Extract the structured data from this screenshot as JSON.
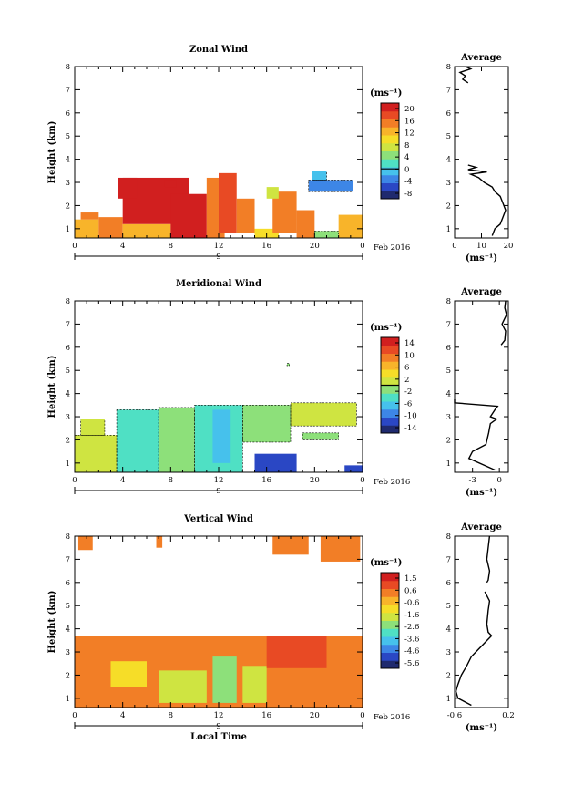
{
  "chart_data": [
    {
      "type": "heatmap",
      "title": "Zonal Wind",
      "ylabel": "Height (km)",
      "xlim": [
        0,
        24
      ],
      "ylim": [
        0.6,
        8
      ],
      "x_ticks": [
        "0",
        "4",
        "8",
        "12",
        "16",
        "20",
        "0"
      ],
      "y_ticks": [
        "1",
        "2",
        "3",
        "4",
        "5",
        "6",
        "7",
        "8"
      ],
      "day_label": "9",
      "date_label": "Feb 2016",
      "colorbar": {
        "unit": "(ms⁻¹)",
        "ticks": [
          "20",
          "16",
          "12",
          "8",
          "4",
          "0",
          "-4",
          "-8"
        ],
        "min": -10,
        "max": 22,
        "colors": [
          "#1f2a6e",
          "#2a47c4",
          "#3d86e6",
          "#46c1ec",
          "#4fe0c4",
          "#8de07a",
          "#cfe441",
          "#f6dd28",
          "#f8b42a",
          "#f27e26",
          "#e84a24",
          "#d11f1f"
        ],
        "contour": 0
      },
      "cells": [
        {
          "x0": 0,
          "x1": 2,
          "y0": 0.6,
          "y1": 1.4,
          "v": 12
        },
        {
          "x0": 2,
          "x1": 4,
          "y0": 0.6,
          "y1": 1.5,
          "v": 15
        },
        {
          "x0": 4,
          "x1": 8,
          "y0": 0.6,
          "y1": 1.2,
          "v": 12
        },
        {
          "x0": 0.5,
          "x1": 2,
          "y0": 1.4,
          "y1": 1.7,
          "v": 16
        },
        {
          "x0": 4,
          "x1": 9.5,
          "y0": 1.2,
          "y1": 3.2,
          "v": 20
        },
        {
          "x0": 8,
          "x1": 11,
          "y0": 0.6,
          "y1": 2.5,
          "v": 20
        },
        {
          "x0": 3.6,
          "x1": 5.2,
          "y0": 2.3,
          "y1": 3.2,
          "v": 20
        },
        {
          "x0": 7.5,
          "x1": 8.5,
          "y0": 2.8,
          "y1": 3.1,
          "v": 20
        },
        {
          "x0": 11,
          "x1": 12.5,
          "y0": 0.6,
          "y1": 3.2,
          "v": 14
        },
        {
          "x0": 12,
          "x1": 13.5,
          "y0": 0.8,
          "y1": 3.4,
          "v": 18
        },
        {
          "x0": 13.5,
          "x1": 15,
          "y0": 0.8,
          "y1": 2.3,
          "v": 16
        },
        {
          "x0": 15,
          "x1": 17,
          "y0": 0.6,
          "y1": 1.0,
          "v": 10
        },
        {
          "x0": 16.5,
          "x1": 18.5,
          "y0": 0.8,
          "y1": 2.6,
          "v": 16
        },
        {
          "x0": 18.5,
          "x1": 20,
          "y0": 0.6,
          "y1": 1.8,
          "v": 14
        },
        {
          "x0": 20,
          "x1": 22,
          "y0": 0.6,
          "y1": 0.9,
          "v": 5
        },
        {
          "x0": 22,
          "x1": 24,
          "y0": 0.6,
          "y1": 1.6,
          "v": 12
        },
        {
          "x0": 19.5,
          "x1": 23.2,
          "y0": 2.6,
          "y1": 3.1,
          "v": -3
        },
        {
          "x0": 19.8,
          "x1": 21,
          "y0": 3.1,
          "y1": 3.5,
          "v": -2
        },
        {
          "x0": 16,
          "x1": 17,
          "y0": 2.3,
          "y1": 2.8,
          "v": 6
        }
      ],
      "average": {
        "title": "Average",
        "xlim": [
          0,
          20
        ],
        "x_ticks": [
          "0",
          "10",
          "20"
        ],
        "xlabel": "(ms⁻¹)",
        "profile": [
          [
            14,
            0.7
          ],
          [
            15,
            1.0
          ],
          [
            17,
            1.2
          ],
          [
            18,
            1.5
          ],
          [
            19,
            1.8
          ],
          [
            18,
            2.1
          ],
          [
            17,
            2.4
          ],
          [
            15,
            2.6
          ],
          [
            14,
            2.8
          ],
          [
            11,
            3.0
          ],
          [
            9,
            3.2
          ],
          [
            6,
            3.35
          ],
          [
            12,
            3.45
          ],
          [
            5,
            3.55
          ],
          [
            8,
            3.65
          ],
          [
            5,
            3.75
          ]
        ],
        "profile_top": [
          [
            5,
            7.3
          ],
          [
            3,
            7.45
          ],
          [
            4,
            7.6
          ],
          [
            2,
            7.75
          ],
          [
            6,
            7.9
          ],
          [
            4,
            8.0
          ]
        ]
      }
    },
    {
      "type": "heatmap",
      "title": "Meridional Wind",
      "ylabel": "Height (km)",
      "xlim": [
        0,
        24
      ],
      "ylim": [
        0.6,
        8
      ],
      "x_ticks": [
        "0",
        "4",
        "8",
        "12",
        "16",
        "20",
        "0"
      ],
      "y_ticks": [
        "1",
        "2",
        "3",
        "4",
        "5",
        "6",
        "7",
        "8"
      ],
      "day_label": "9",
      "date_label": "Feb 2016",
      "colorbar": {
        "unit": "(ms⁻¹)",
        "ticks": [
          "14",
          "10",
          "6",
          "2",
          "-2",
          "-6",
          "-10",
          "-14"
        ],
        "min": -16,
        "max": 16,
        "colors": [
          "#1f2a6e",
          "#2a47c4",
          "#3d86e6",
          "#46c1ec",
          "#4fe0c4",
          "#8de07a",
          "#cfe441",
          "#f6dd28",
          "#f8b42a",
          "#f27e26",
          "#e84a24",
          "#d11f1f"
        ],
        "contour": 0
      },
      "cells": [
        {
          "x0": 0,
          "x1": 3.5,
          "y0": 0.6,
          "y1": 2.2,
          "v": 2
        },
        {
          "x0": 0.5,
          "x1": 2.5,
          "y0": 2.2,
          "y1": 2.9,
          "v": 0
        },
        {
          "x0": 3.5,
          "x1": 7,
          "y0": 0.6,
          "y1": 3.3,
          "v": -4
        },
        {
          "x0": 7,
          "x1": 10,
          "y0": 0.6,
          "y1": 3.4,
          "v": -1
        },
        {
          "x0": 10,
          "x1": 14,
          "y0": 0.6,
          "y1": 3.5,
          "v": -5
        },
        {
          "x0": 11.5,
          "x1": 13,
          "y0": 1.0,
          "y1": 3.3,
          "v": -8
        },
        {
          "x0": 14,
          "x1": 18,
          "y0": 1.9,
          "y1": 3.5,
          "v": -2
        },
        {
          "x0": 15,
          "x1": 18.5,
          "y0": 0.6,
          "y1": 1.4,
          "v": -11
        },
        {
          "x0": 18,
          "x1": 23.5,
          "y0": 2.6,
          "y1": 3.6,
          "v": 0
        },
        {
          "x0": 19,
          "x1": 22,
          "y0": 2.0,
          "y1": 2.3,
          "v": -2
        },
        {
          "x0": 22.5,
          "x1": 24,
          "y0": 0.6,
          "y1": 0.9,
          "v": -12
        },
        {
          "x0": 17.7,
          "x1": 17.9,
          "y0": 5.2,
          "y1": 5.3,
          "v": -1
        }
      ],
      "average": {
        "title": "Average",
        "xlim": [
          -5,
          1
        ],
        "x_ticks": [
          "-3",
          "0"
        ],
        "xlabel": "(ms⁻¹)",
        "profile": [
          [
            -0.5,
            0.7
          ],
          [
            -3.4,
            1.2
          ],
          [
            -3.0,
            1.5
          ],
          [
            -1.5,
            1.8
          ],
          [
            -1.2,
            2.3
          ],
          [
            -1.0,
            2.7
          ],
          [
            -0.3,
            2.9
          ],
          [
            -1.0,
            3.0
          ],
          [
            -0.5,
            3.3
          ],
          [
            -0.2,
            3.45
          ],
          [
            -5,
            3.6
          ],
          [
            -5,
            3.75
          ]
        ],
        "profile_top": [
          [
            0.2,
            6.1
          ],
          [
            0.6,
            6.3
          ],
          [
            0.7,
            6.7
          ],
          [
            0.3,
            7.0
          ],
          [
            0.8,
            7.4
          ],
          [
            0.6,
            7.7
          ],
          [
            0.7,
            8.0
          ]
        ]
      }
    },
    {
      "type": "heatmap",
      "title": "Vertical Wind",
      "ylabel": "Height (km)",
      "xlabel": "Local Time",
      "xlim": [
        0,
        24
      ],
      "ylim": [
        0.6,
        8
      ],
      "x_ticks": [
        "0",
        "4",
        "8",
        "12",
        "16",
        "20",
        "0"
      ],
      "y_ticks": [
        "1",
        "2",
        "3",
        "4",
        "5",
        "6",
        "7",
        "8"
      ],
      "day_label": "9",
      "date_label": "Feb 2016",
      "colorbar": {
        "unit": "(ms⁻¹)",
        "ticks": [
          "1.5",
          "0.6",
          "-0.6",
          "-1.6",
          "-2.6",
          "-3.6",
          "-4.6",
          "-5.6"
        ],
        "min": -6.1,
        "max": 2.0,
        "colors": [
          "#1f2a6e",
          "#2a47c4",
          "#3d86e6",
          "#46c1ec",
          "#4fe0c4",
          "#8de07a",
          "#cfe441",
          "#f6dd28",
          "#f8b42a",
          "#f27e26",
          "#e84a24",
          "#d11f1f"
        ],
        "contour": null
      },
      "cells": [
        {
          "x0": 0,
          "x1": 24,
          "y0": 0.6,
          "y1": 3.7,
          "v": 0.2
        },
        {
          "x0": 3,
          "x1": 6,
          "y0": 1.5,
          "y1": 2.6,
          "v": -1.2
        },
        {
          "x0": 7,
          "x1": 11,
          "y0": 0.8,
          "y1": 2.2,
          "v": -2.0
        },
        {
          "x0": 11.5,
          "x1": 13.5,
          "y0": 0.8,
          "y1": 2.8,
          "v": -2.4
        },
        {
          "x0": 14,
          "x1": 16,
          "y0": 0.8,
          "y1": 2.4,
          "v": -1.5
        },
        {
          "x0": 16,
          "x1": 21,
          "y0": 2.3,
          "y1": 3.7,
          "v": 0.7
        },
        {
          "x0": 0.3,
          "x1": 1.5,
          "y0": 7.4,
          "y1": 8.0,
          "v": 0.5
        },
        {
          "x0": 6.8,
          "x1": 7.3,
          "y0": 7.5,
          "y1": 8.0,
          "v": 0.5
        },
        {
          "x0": 16.5,
          "x1": 19.5,
          "y0": 7.2,
          "y1": 8.0,
          "v": 0.4
        },
        {
          "x0": 20.5,
          "x1": 23.8,
          "y0": 6.9,
          "y1": 8.0,
          "v": 0.4
        }
      ],
      "average": {
        "title": "Average",
        "xlim": [
          -0.6,
          0.2
        ],
        "x_ticks": [
          "-0.6",
          "0.2"
        ],
        "xlabel": "(ms⁻¹)",
        "profile": [
          [
            -0.35,
            0.7
          ],
          [
            -0.55,
            1.0
          ],
          [
            -0.58,
            1.3
          ],
          [
            -0.55,
            1.6
          ],
          [
            -0.5,
            2.0
          ],
          [
            -0.42,
            2.4
          ],
          [
            -0.35,
            2.8
          ],
          [
            -0.25,
            3.1
          ],
          [
            -0.15,
            3.4
          ],
          [
            -0.05,
            3.7
          ],
          [
            -0.1,
            3.85
          ],
          [
            -0.12,
            4.2
          ],
          [
            -0.1,
            4.8
          ],
          [
            -0.08,
            5.2
          ],
          [
            -0.15,
            5.6
          ]
        ],
        "profile_top": [
          [
            -0.12,
            6.0
          ],
          [
            -0.1,
            6.1
          ],
          [
            -0.08,
            6.5
          ],
          [
            -0.12,
            7.0
          ],
          [
            -0.1,
            7.5
          ],
          [
            -0.08,
            8.0
          ]
        ]
      }
    }
  ]
}
